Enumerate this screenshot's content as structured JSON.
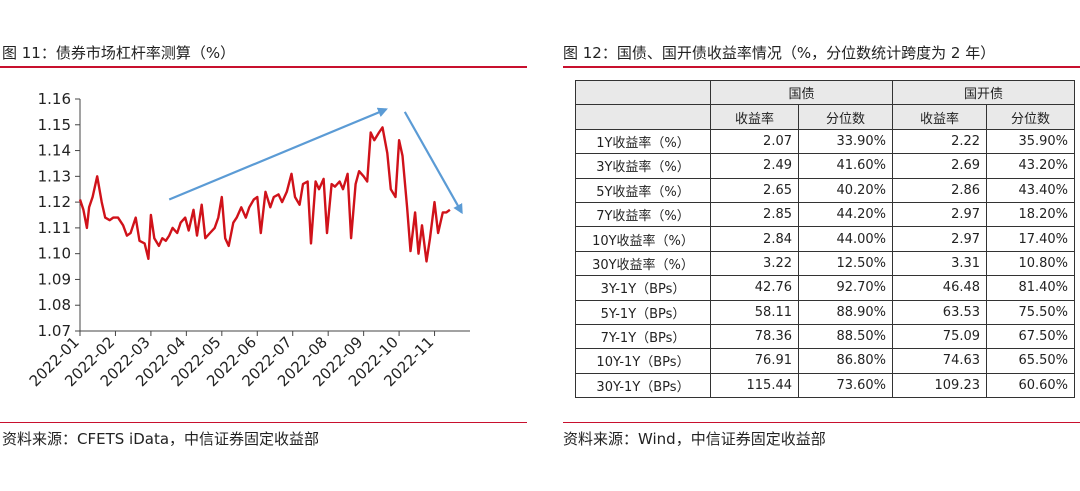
{
  "left": {
    "title": "图 11：债券市场杠杆率测算（%）",
    "source": "资料来源：CFETS iData，中信证券固定收益部"
  },
  "right": {
    "title": "图 12：国债、国开债收益率情况（%，分位数统计跨度为 2 年）",
    "source": "资料来源：Wind，中信证券固定收益部"
  },
  "chart_data": {
    "type": "line",
    "title": "",
    "xlabel": "",
    "ylabel": "",
    "ylim": [
      1.07,
      1.16
    ],
    "y_ticks": [
      "1.16",
      "1.15",
      "1.14",
      "1.13",
      "1.12",
      "1.11",
      "1.10",
      "1.09",
      "1.08",
      "1.07"
    ],
    "x_ticks": [
      "2022-01",
      "2022-02",
      "2022-03",
      "2022-04",
      "2022-05",
      "2022-06",
      "2022-07",
      "2022-08",
      "2022-09",
      "2022-10",
      "2022-11"
    ],
    "grid": false,
    "line_color": "#d0121a",
    "arrow_color": "#5b9bd5",
    "series": [
      {
        "x": [
          "2022-01-01",
          "2022-01-04",
          "2022-01-07",
          "2022-01-09",
          "2022-01-12",
          "2022-01-16",
          "2022-01-20",
          "2022-01-23",
          "2022-01-27",
          "2022-01-30",
          "2022-02-03",
          "2022-02-07",
          "2022-02-10",
          "2022-02-13",
          "2022-02-17",
          "2022-02-20",
          "2022-02-24",
          "2022-02-27",
          "2022-03-01",
          "2022-03-04",
          "2022-03-08",
          "2022-03-11",
          "2022-03-14",
          "2022-03-17",
          "2022-03-20",
          "2022-03-24",
          "2022-03-27",
          "2022-03-31",
          "2022-04-03",
          "2022-04-07",
          "2022-04-10",
          "2022-04-14",
          "2022-04-17",
          "2022-04-21",
          "2022-04-25",
          "2022-04-28",
          "2022-05-01",
          "2022-05-04",
          "2022-05-07",
          "2022-05-11",
          "2022-05-14",
          "2022-05-18",
          "2022-05-22",
          "2022-05-25",
          "2022-05-29",
          "2022-06-01",
          "2022-06-04",
          "2022-06-08",
          "2022-06-12",
          "2022-06-15",
          "2022-06-19",
          "2022-06-22",
          "2022-06-26",
          "2022-06-30",
          "2022-07-03",
          "2022-07-07",
          "2022-07-10",
          "2022-07-14",
          "2022-07-17",
          "2022-07-21",
          "2022-07-24",
          "2022-07-28",
          "2022-07-31",
          "2022-08-04",
          "2022-08-07",
          "2022-08-11",
          "2022-08-14",
          "2022-08-18",
          "2022-08-21",
          "2022-08-25",
          "2022-08-28",
          "2022-09-01",
          "2022-09-04",
          "2022-09-07",
          "2022-09-10",
          "2022-09-14",
          "2022-09-17",
          "2022-09-21",
          "2022-09-24",
          "2022-09-28",
          "2022-10-01",
          "2022-10-04",
          "2022-10-08",
          "2022-10-11",
          "2022-10-15",
          "2022-10-18",
          "2022-10-21",
          "2022-10-25",
          "2022-10-28",
          "2022-11-01",
          "2022-11-04",
          "2022-11-08",
          "2022-11-11",
          "2022-11-14"
        ],
        "values": [
          1.121,
          1.117,
          1.11,
          1.118,
          1.122,
          1.13,
          1.12,
          1.114,
          1.113,
          1.114,
          1.114,
          1.111,
          1.107,
          1.108,
          1.114,
          1.105,
          1.104,
          1.098,
          1.115,
          1.106,
          1.103,
          1.106,
          1.105,
          1.107,
          1.11,
          1.108,
          1.112,
          1.114,
          1.109,
          1.117,
          1.107,
          1.119,
          1.106,
          1.108,
          1.11,
          1.114,
          1.122,
          1.106,
          1.103,
          1.112,
          1.114,
          1.118,
          1.114,
          1.118,
          1.121,
          1.122,
          1.108,
          1.124,
          1.118,
          1.122,
          1.123,
          1.12,
          1.124,
          1.131,
          1.122,
          1.119,
          1.127,
          1.128,
          1.104,
          1.128,
          1.125,
          1.129,
          1.108,
          1.127,
          1.126,
          1.128,
          1.125,
          1.131,
          1.106,
          1.127,
          1.132,
          1.13,
          1.128,
          1.147,
          1.144,
          1.147,
          1.149,
          1.139,
          1.125,
          1.122,
          1.144,
          1.138,
          1.118,
          1.101,
          1.116,
          1.1,
          1.111,
          1.097,
          1.106,
          1.12,
          1.108,
          1.116,
          1.116,
          1.117
        ]
      }
    ],
    "annotations": [
      {
        "type": "arrow",
        "from": [
          "2022-03-17",
          1.121
        ],
        "to": [
          "2022-09-20",
          1.156
        ]
      },
      {
        "type": "arrow",
        "from": [
          "2022-10-06",
          1.155
        ],
        "to": [
          "2022-11-24",
          1.116
        ]
      }
    ]
  },
  "table": {
    "groups": [
      "国债",
      "国开债"
    ],
    "subheaders": [
      "收益率",
      "分位数",
      "收益率",
      "分位数"
    ],
    "rows": [
      {
        "label": "1Y收益率（%）",
        "cells": [
          "2.07",
          "33.90%",
          "2.22",
          "35.90%"
        ]
      },
      {
        "label": "3Y收益率（%）",
        "cells": [
          "2.49",
          "41.60%",
          "2.69",
          "43.20%"
        ]
      },
      {
        "label": "5Y收益率（%）",
        "cells": [
          "2.65",
          "40.20%",
          "2.86",
          "43.40%"
        ]
      },
      {
        "label": "7Y收益率（%）",
        "cells": [
          "2.85",
          "44.20%",
          "2.97",
          "18.20%"
        ]
      },
      {
        "label": "10Y收益率（%）",
        "cells": [
          "2.84",
          "44.00%",
          "2.97",
          "17.40%"
        ]
      },
      {
        "label": "30Y收益率（%）",
        "cells": [
          "3.22",
          "12.50%",
          "3.31",
          "10.80%"
        ]
      },
      {
        "label": "3Y-1Y（BPs）",
        "cells": [
          "42.76",
          "92.70%",
          "46.48",
          "81.40%"
        ]
      },
      {
        "label": "5Y-1Y（BPs）",
        "cells": [
          "58.11",
          "88.90%",
          "63.53",
          "75.50%"
        ]
      },
      {
        "label": "7Y-1Y（BPs）",
        "cells": [
          "78.36",
          "88.50%",
          "75.09",
          "67.50%"
        ]
      },
      {
        "label": "10Y-1Y（BPs）",
        "cells": [
          "76.91",
          "86.80%",
          "74.63",
          "65.50%"
        ]
      },
      {
        "label": "30Y-1Y（BPs）",
        "cells": [
          "115.44",
          "73.60%",
          "109.23",
          "60.60%"
        ]
      }
    ]
  }
}
